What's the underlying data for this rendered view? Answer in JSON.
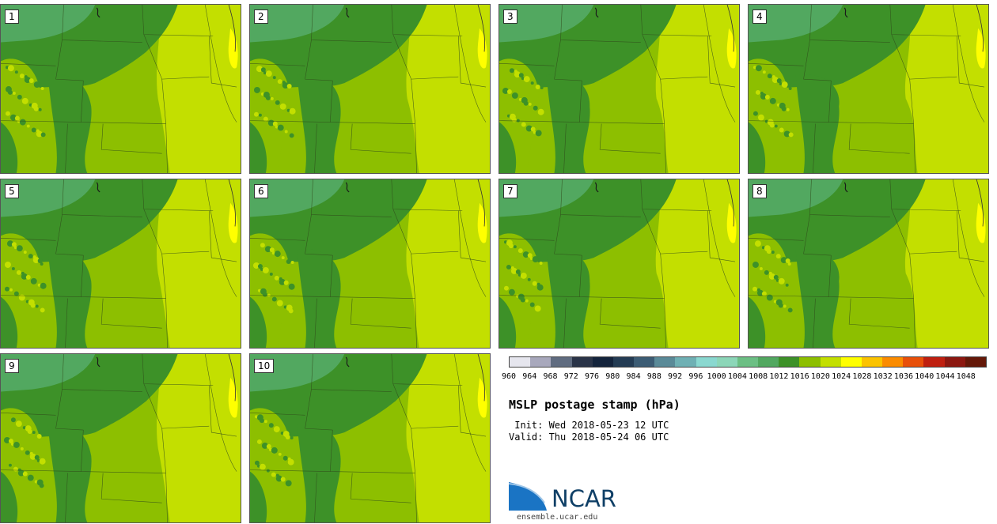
{
  "panel": {
    "title": "MSLP postage stamp (hPa)",
    "init": " Init: Wed 2018-05-23 12 UTC",
    "valid": "Valid: Thu 2018-05-24 06 UTC"
  },
  "stamps": [
    "1",
    "2",
    "3",
    "4",
    "5",
    "6",
    "7",
    "8",
    "9",
    "10"
  ],
  "colorbar": {
    "labels": [
      "960",
      "964",
      "968",
      "972",
      "976",
      "980",
      "984",
      "988",
      "992",
      "996",
      "1000",
      "1004",
      "1008",
      "1012",
      "1016",
      "1020",
      "1024",
      "1028",
      "1032",
      "1036",
      "1040",
      "1044",
      "1048"
    ],
    "colors": [
      "#e6e6ee",
      "#a8a8bc",
      "#606c80",
      "#2a3448",
      "#14243c",
      "#243c54",
      "#3c5c74",
      "#5a8a98",
      "#6fb0b4",
      "#8ad8d0",
      "#8cd6b8",
      "#6cbf84",
      "#52a860",
      "#3d9128",
      "#8dbf00",
      "#c3df00",
      "#ffff00",
      "#fbc300",
      "#fb8c00",
      "#e8500a",
      "#bf2010",
      "#8c1810",
      "#641808"
    ]
  },
  "logo": {
    "text": "NCAR",
    "url": "ensemble.ucar.edu"
  }
}
